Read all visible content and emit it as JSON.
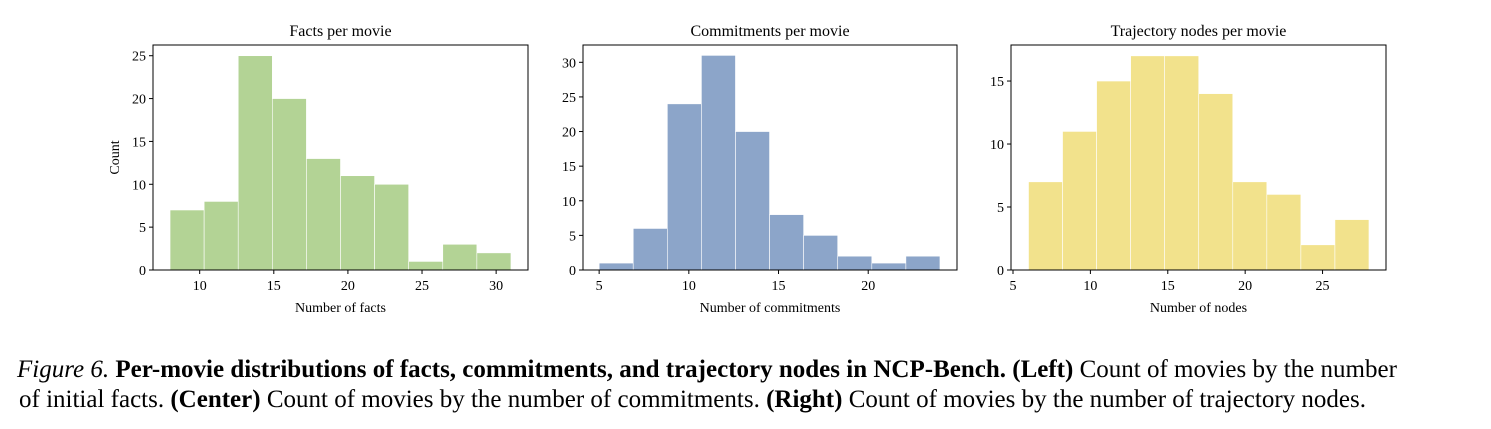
{
  "chart_data": [
    {
      "type": "histogram",
      "title": "Facts per movie",
      "xlabel": "Number of facts",
      "ylabel": "Count",
      "color": "#b3d395",
      "bins": [
        8,
        10.3,
        12.6,
        14.9,
        17.2,
        19.5,
        21.8,
        24.1,
        26.4,
        28.7,
        31
      ],
      "values": [
        7,
        8,
        25,
        20,
        13,
        11,
        10,
        1,
        3,
        2
      ],
      "xlim": [
        6.85,
        32.15
      ],
      "xticks": [
        10,
        15,
        20,
        25,
        30
      ],
      "ylim": [
        0,
        26.25
      ],
      "yticks": [
        0,
        5,
        10,
        15,
        20,
        25
      ]
    },
    {
      "type": "histogram",
      "title": "Commitments per movie",
      "xlabel": "Number of commitments",
      "color": "#8ca5c9",
      "bins": [
        5,
        6.9,
        8.8,
        10.7,
        12.6,
        14.5,
        16.4,
        18.3,
        20.2,
        22.1,
        24
      ],
      "values": [
        1,
        6,
        24,
        31,
        20,
        8,
        5,
        2,
        1,
        2
      ],
      "xlim": [
        4.1,
        24.95
      ],
      "xticks": [
        5,
        10,
        15,
        20
      ],
      "ylim": [
        0,
        32.5
      ],
      "yticks": [
        0,
        5,
        10,
        15,
        20,
        25,
        30
      ]
    },
    {
      "type": "histogram",
      "title": "Trajectory nodes per movie",
      "xlabel": "Number of nodes",
      "color": "#f2e28c",
      "bins": [
        6,
        8.2,
        10.4,
        12.6,
        14.8,
        17,
        19.2,
        21.4,
        23.6,
        25.8,
        28
      ],
      "values": [
        7,
        11,
        15,
        17,
        17,
        14,
        7,
        6,
        2,
        4
      ],
      "xlim": [
        4.87,
        29.1
      ],
      "xticks": [
        5,
        10,
        15,
        20,
        25
      ],
      "ylim": [
        0,
        17.86
      ],
      "yticks": [
        0,
        5,
        10,
        15
      ]
    }
  ],
  "caption": {
    "label": "Figure 6.",
    "title": "Per-movie distributions of facts, commitments, and trajectory nodes in NCP-Bench.",
    "left": "(Left)",
    "left_text_1": "Count of movies by the number",
    "left_text_2": "of initial facts.",
    "center": "(Center)",
    "center_text": "Count of movies by the number of commitments.",
    "right": "(Right)",
    "right_text": "Count of movies by the number of trajectory nodes."
  }
}
